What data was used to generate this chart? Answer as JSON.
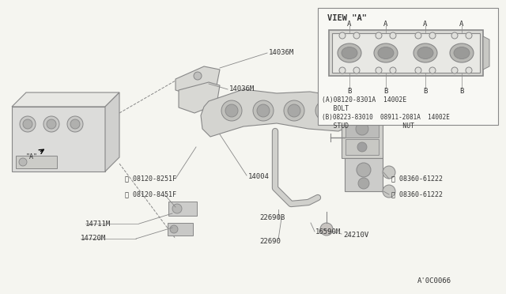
{
  "bg_color": "#f5f5f0",
  "line_color": "#888888",
  "text_color": "#333333",
  "diagram_code": "A'0C0066",
  "view_a_title": "VIEW \"A\"",
  "legend_a": "(A)08120-8301A  14002E",
  "legend_a2": "   BOLT",
  "legend_b": "(B)08223-83010  08911-2081A  14002E",
  "legend_b2": "   STUD              NUT"
}
